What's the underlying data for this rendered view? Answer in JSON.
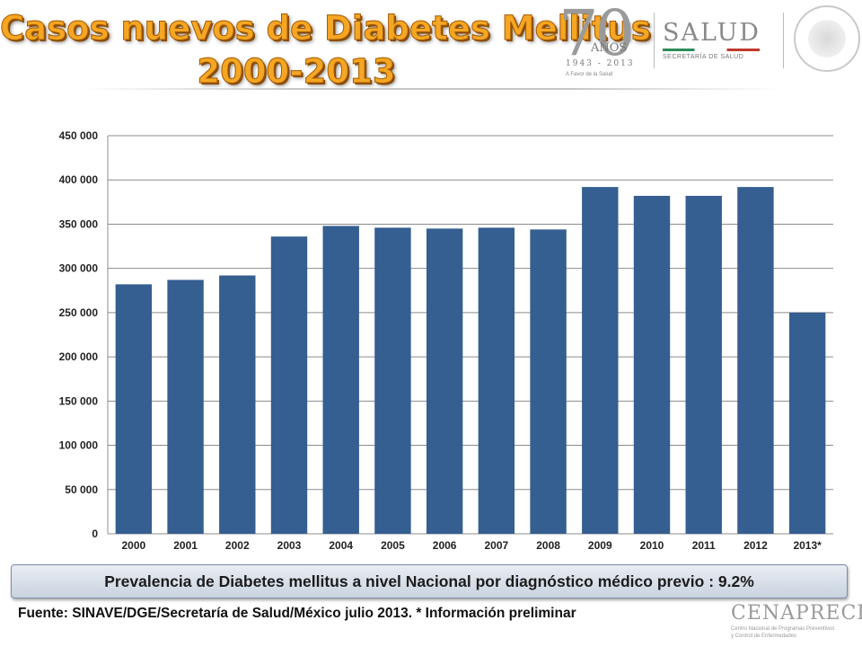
{
  "title": {
    "line1": "Casos nuevos de Diabetes Mellitus",
    "line2": "2000-2013"
  },
  "logos": {
    "anniversary": {
      "number": "70",
      "word": "AÑOS",
      "years": "1943 - 2013",
      "motto": "A Favor de la Salud"
    },
    "salud": {
      "word": "SALUD",
      "subtitle": "SECRETARÍA DE SALUD"
    },
    "cenaprece": {
      "word": "CENAPRECE",
      "line1": "Centro Nacional de Programas Preventivos",
      "line2": "y Control de Enfermedades"
    }
  },
  "chart_data": {
    "type": "bar",
    "categories": [
      "2000",
      "2001",
      "2002",
      "2003",
      "2004",
      "2005",
      "2006",
      "2007",
      "2008",
      "2009",
      "2010",
      "2011",
      "2012",
      "2013*"
    ],
    "values": [
      282000,
      287000,
      292000,
      336000,
      348000,
      346000,
      345000,
      346000,
      344000,
      392000,
      382000,
      382000,
      392000,
      250000
    ],
    "ylim": [
      0,
      450000
    ],
    "yticks": [
      0,
      50000,
      100000,
      150000,
      200000,
      250000,
      300000,
      350000,
      400000,
      450000
    ],
    "ytick_labels": [
      "0",
      "50 000",
      "100 000",
      "150 000",
      "200 000",
      "250 000",
      "300 000",
      "350 000",
      "400 000",
      "450 000"
    ],
    "grid": true,
    "legend": "none",
    "bar_color": "#355e91"
  },
  "banner": "Prevalencia de Diabetes mellitus a nivel Nacional por diagnóstico médico previo : 9.2%",
  "source": "Fuente:  SINAVE/DGE/Secretaría de Salud/México julio 2013. * Información preliminar"
}
